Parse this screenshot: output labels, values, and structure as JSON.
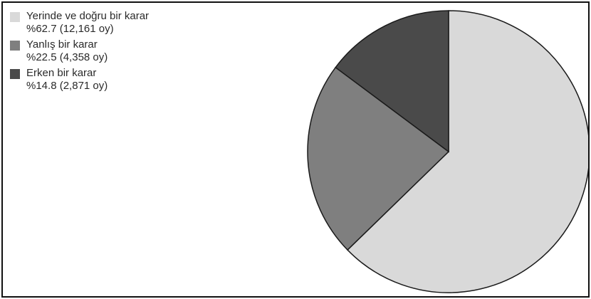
{
  "chart_data": {
    "type": "pie",
    "categories": [
      "Yerinde ve doğru bir karar",
      "Yanlış bir karar",
      "Erken bir karar"
    ],
    "percent_labels": [
      "%62.7",
      "%22.5",
      "%14.8"
    ],
    "vote_labels": [
      "(12,161 oy)",
      "(4,358 oy)",
      "(2,871 oy)"
    ],
    "values": [
      12161,
      4358,
      2871
    ],
    "percents": [
      62.7,
      22.5,
      14.8
    ],
    "colors": [
      "#d9d9d9",
      "#7f7f7f",
      "#4a4a4a"
    ],
    "legend": "top-left",
    "start_angle": "12 o'clock",
    "direction": "clockwise"
  }
}
